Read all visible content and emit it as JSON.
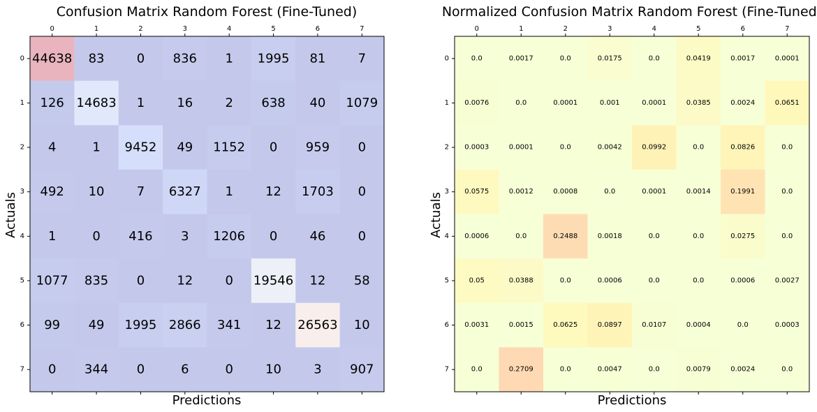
{
  "chart_data": [
    {
      "type": "heatmap",
      "title": "Confusion Matrix Random Forest (Fine-Tuned)",
      "xlabel": "Predictions",
      "ylabel": "Actuals",
      "x_ticks": [
        "0",
        "1",
        "2",
        "3",
        "4",
        "5",
        "6",
        "7"
      ],
      "y_ticks": [
        "0",
        "1",
        "2",
        "3",
        "4",
        "5",
        "6",
        "7"
      ],
      "colormap": "coolwarm",
      "values": [
        [
          44638,
          83,
          0,
          836,
          1,
          1995,
          81,
          7
        ],
        [
          126,
          14683,
          1,
          16,
          2,
          638,
          40,
          1079
        ],
        [
          4,
          1,
          9452,
          49,
          1152,
          0,
          959,
          0
        ],
        [
          492,
          10,
          7,
          6327,
          1,
          12,
          1703,
          0
        ],
        [
          1,
          0,
          416,
          3,
          1206,
          0,
          46,
          0
        ],
        [
          1077,
          835,
          0,
          12,
          0,
          19546,
          12,
          58
        ],
        [
          99,
          49,
          1995,
          2866,
          341,
          12,
          26563,
          10
        ],
        [
          0,
          344,
          0,
          6,
          0,
          10,
          3,
          907
        ]
      ]
    },
    {
      "type": "heatmap",
      "title": "Normalized Confusion Matrix Random Forest (Fine-Tuned)",
      "xlabel": "Predictions",
      "ylabel": "Actuals",
      "x_ticks": [
        "0",
        "1",
        "2",
        "3",
        "4",
        "5",
        "6",
        "7"
      ],
      "y_ticks": [
        "0",
        "1",
        "2",
        "3",
        "4",
        "5",
        "6",
        "7"
      ],
      "colormap": "Wistia",
      "values": [
        [
          "0.0",
          "0.0017",
          "0.0",
          "0.0175",
          "0.0",
          "0.0419",
          "0.0017",
          "0.0001"
        ],
        [
          "0.0076",
          "0.0",
          "0.0001",
          "0.001",
          "0.0001",
          "0.0385",
          "0.0024",
          "0.0651"
        ],
        [
          "0.0003",
          "0.0001",
          "0.0",
          "0.0042",
          "0.0992",
          "0.0",
          "0.0826",
          "0.0"
        ],
        [
          "0.0575",
          "0.0012",
          "0.0008",
          "0.0",
          "0.0001",
          "0.0014",
          "0.1991",
          "0.0"
        ],
        [
          "0.0006",
          "0.0",
          "0.2488",
          "0.0018",
          "0.0",
          "0.0",
          "0.0275",
          "0.0"
        ],
        [
          "0.05",
          "0.0388",
          "0.0",
          "0.0006",
          "0.0",
          "0.0",
          "0.0006",
          "0.0027"
        ],
        [
          "0.0031",
          "0.0015",
          "0.0625",
          "0.0897",
          "0.0107",
          "0.0004",
          "0.0",
          "0.0003"
        ],
        [
          "0.0",
          "0.2709",
          "0.0",
          "0.0047",
          "0.0",
          "0.0079",
          "0.0024",
          "0.0"
        ]
      ]
    }
  ]
}
